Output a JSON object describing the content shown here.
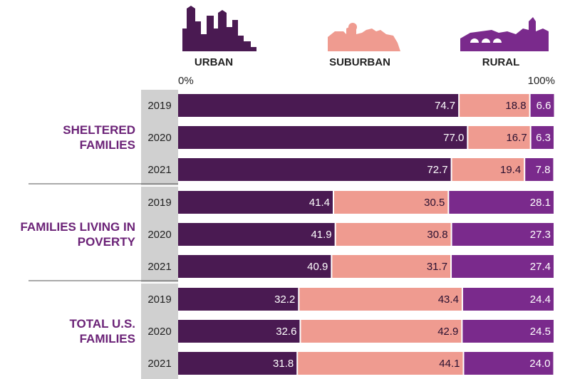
{
  "chart_data": {
    "type": "bar",
    "orientation": "horizontal",
    "stacked": true,
    "xlim": [
      0,
      100
    ],
    "xticks": [
      {
        "value": 0,
        "label": "0%"
      },
      {
        "value": 100,
        "label": "100%"
      }
    ],
    "groups": [
      {
        "name": "SHELTERED FAMILIES",
        "categories": [
          "2019",
          "2020",
          "2021"
        ]
      },
      {
        "name": "FAMILIES LIVING IN POVERTY",
        "categories": [
          "2019",
          "2020",
          "2021"
        ]
      },
      {
        "name": "TOTAL U.S. FAMILIES",
        "categories": [
          "2019",
          "2020",
          "2021"
        ]
      }
    ],
    "series": [
      {
        "name": "URBAN",
        "color": "#4a1a52",
        "values": [
          74.7,
          77.0,
          72.7,
          41.4,
          41.9,
          40.9,
          32.2,
          32.6,
          31.8
        ],
        "value_labels": [
          "74.7",
          "77.0",
          "72.7",
          "41.4",
          "41.9",
          "40.9",
          "32.2",
          "32.6",
          "31.8"
        ]
      },
      {
        "name": "SUBURBAN",
        "color": "#ef9b90",
        "values": [
          18.8,
          16.7,
          19.4,
          30.5,
          30.8,
          31.7,
          43.4,
          42.9,
          44.1
        ],
        "value_labels": [
          "18.8",
          "16.7",
          "19.4",
          "30.5",
          "30.8",
          "31.7",
          "43.4",
          "42.9",
          "44.1"
        ]
      },
      {
        "name": "RURAL",
        "color": "#7a2a8c",
        "values": [
          6.6,
          6.3,
          7.8,
          28.1,
          27.3,
          27.4,
          24.4,
          24.5,
          24.0
        ],
        "value_labels": [
          "6.6",
          "6.3",
          "7.8",
          "28.1",
          "27.3",
          "27.4",
          "24.4",
          "24.5",
          "24.0"
        ]
      }
    ]
  }
}
